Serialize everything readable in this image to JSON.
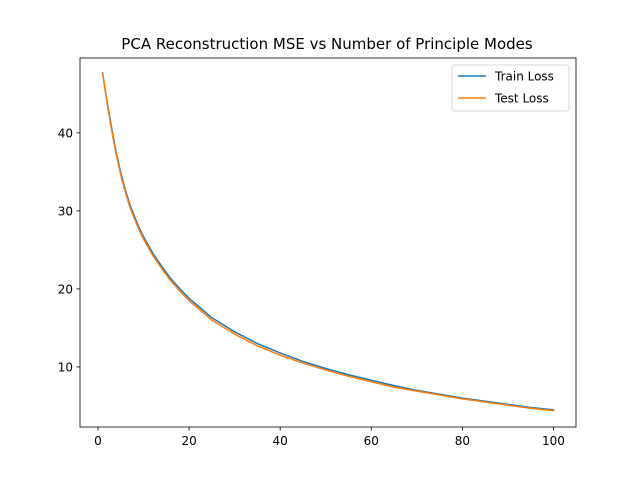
{
  "chart_data": {
    "type": "line",
    "title": "PCA Reconstruction MSE vs Number of Principle Modes",
    "xlabel": "",
    "ylabel": "",
    "xlim": [
      -3.95,
      104.95
    ],
    "ylim": [
      2.3,
      49.6
    ],
    "xticks": [
      0,
      20,
      40,
      60,
      80,
      100
    ],
    "yticks": [
      10,
      20,
      30,
      40
    ],
    "grid": false,
    "legend_position": "top-right",
    "x": [
      1,
      2,
      3,
      4,
      5,
      6,
      7,
      8,
      9,
      10,
      12,
      14,
      16,
      18,
      20,
      25,
      30,
      35,
      40,
      45,
      50,
      55,
      60,
      65,
      70,
      75,
      80,
      85,
      90,
      95,
      100
    ],
    "series": [
      {
        "name": "Train Loss",
        "color": "#1f77b4",
        "values": [
          47.7,
          44.0,
          40.6,
          37.5,
          34.9,
          32.7,
          30.8,
          29.3,
          27.9,
          26.7,
          24.6,
          22.9,
          21.3,
          20.0,
          18.8,
          16.3,
          14.5,
          13.0,
          11.8,
          10.7,
          9.8,
          9.0,
          8.3,
          7.6,
          7.0,
          6.5,
          6.0,
          5.6,
          5.2,
          4.8,
          4.5
        ]
      },
      {
        "name": "Test Loss",
        "color": "#ff7f0e",
        "values": [
          47.6,
          43.8,
          40.3,
          37.2,
          34.6,
          32.4,
          30.5,
          29.0,
          27.6,
          26.4,
          24.3,
          22.6,
          21.0,
          19.7,
          18.5,
          16.0,
          14.2,
          12.7,
          11.5,
          10.5,
          9.6,
          8.8,
          8.1,
          7.4,
          6.9,
          6.4,
          5.9,
          5.5,
          5.1,
          4.7,
          4.4
        ]
      }
    ]
  }
}
